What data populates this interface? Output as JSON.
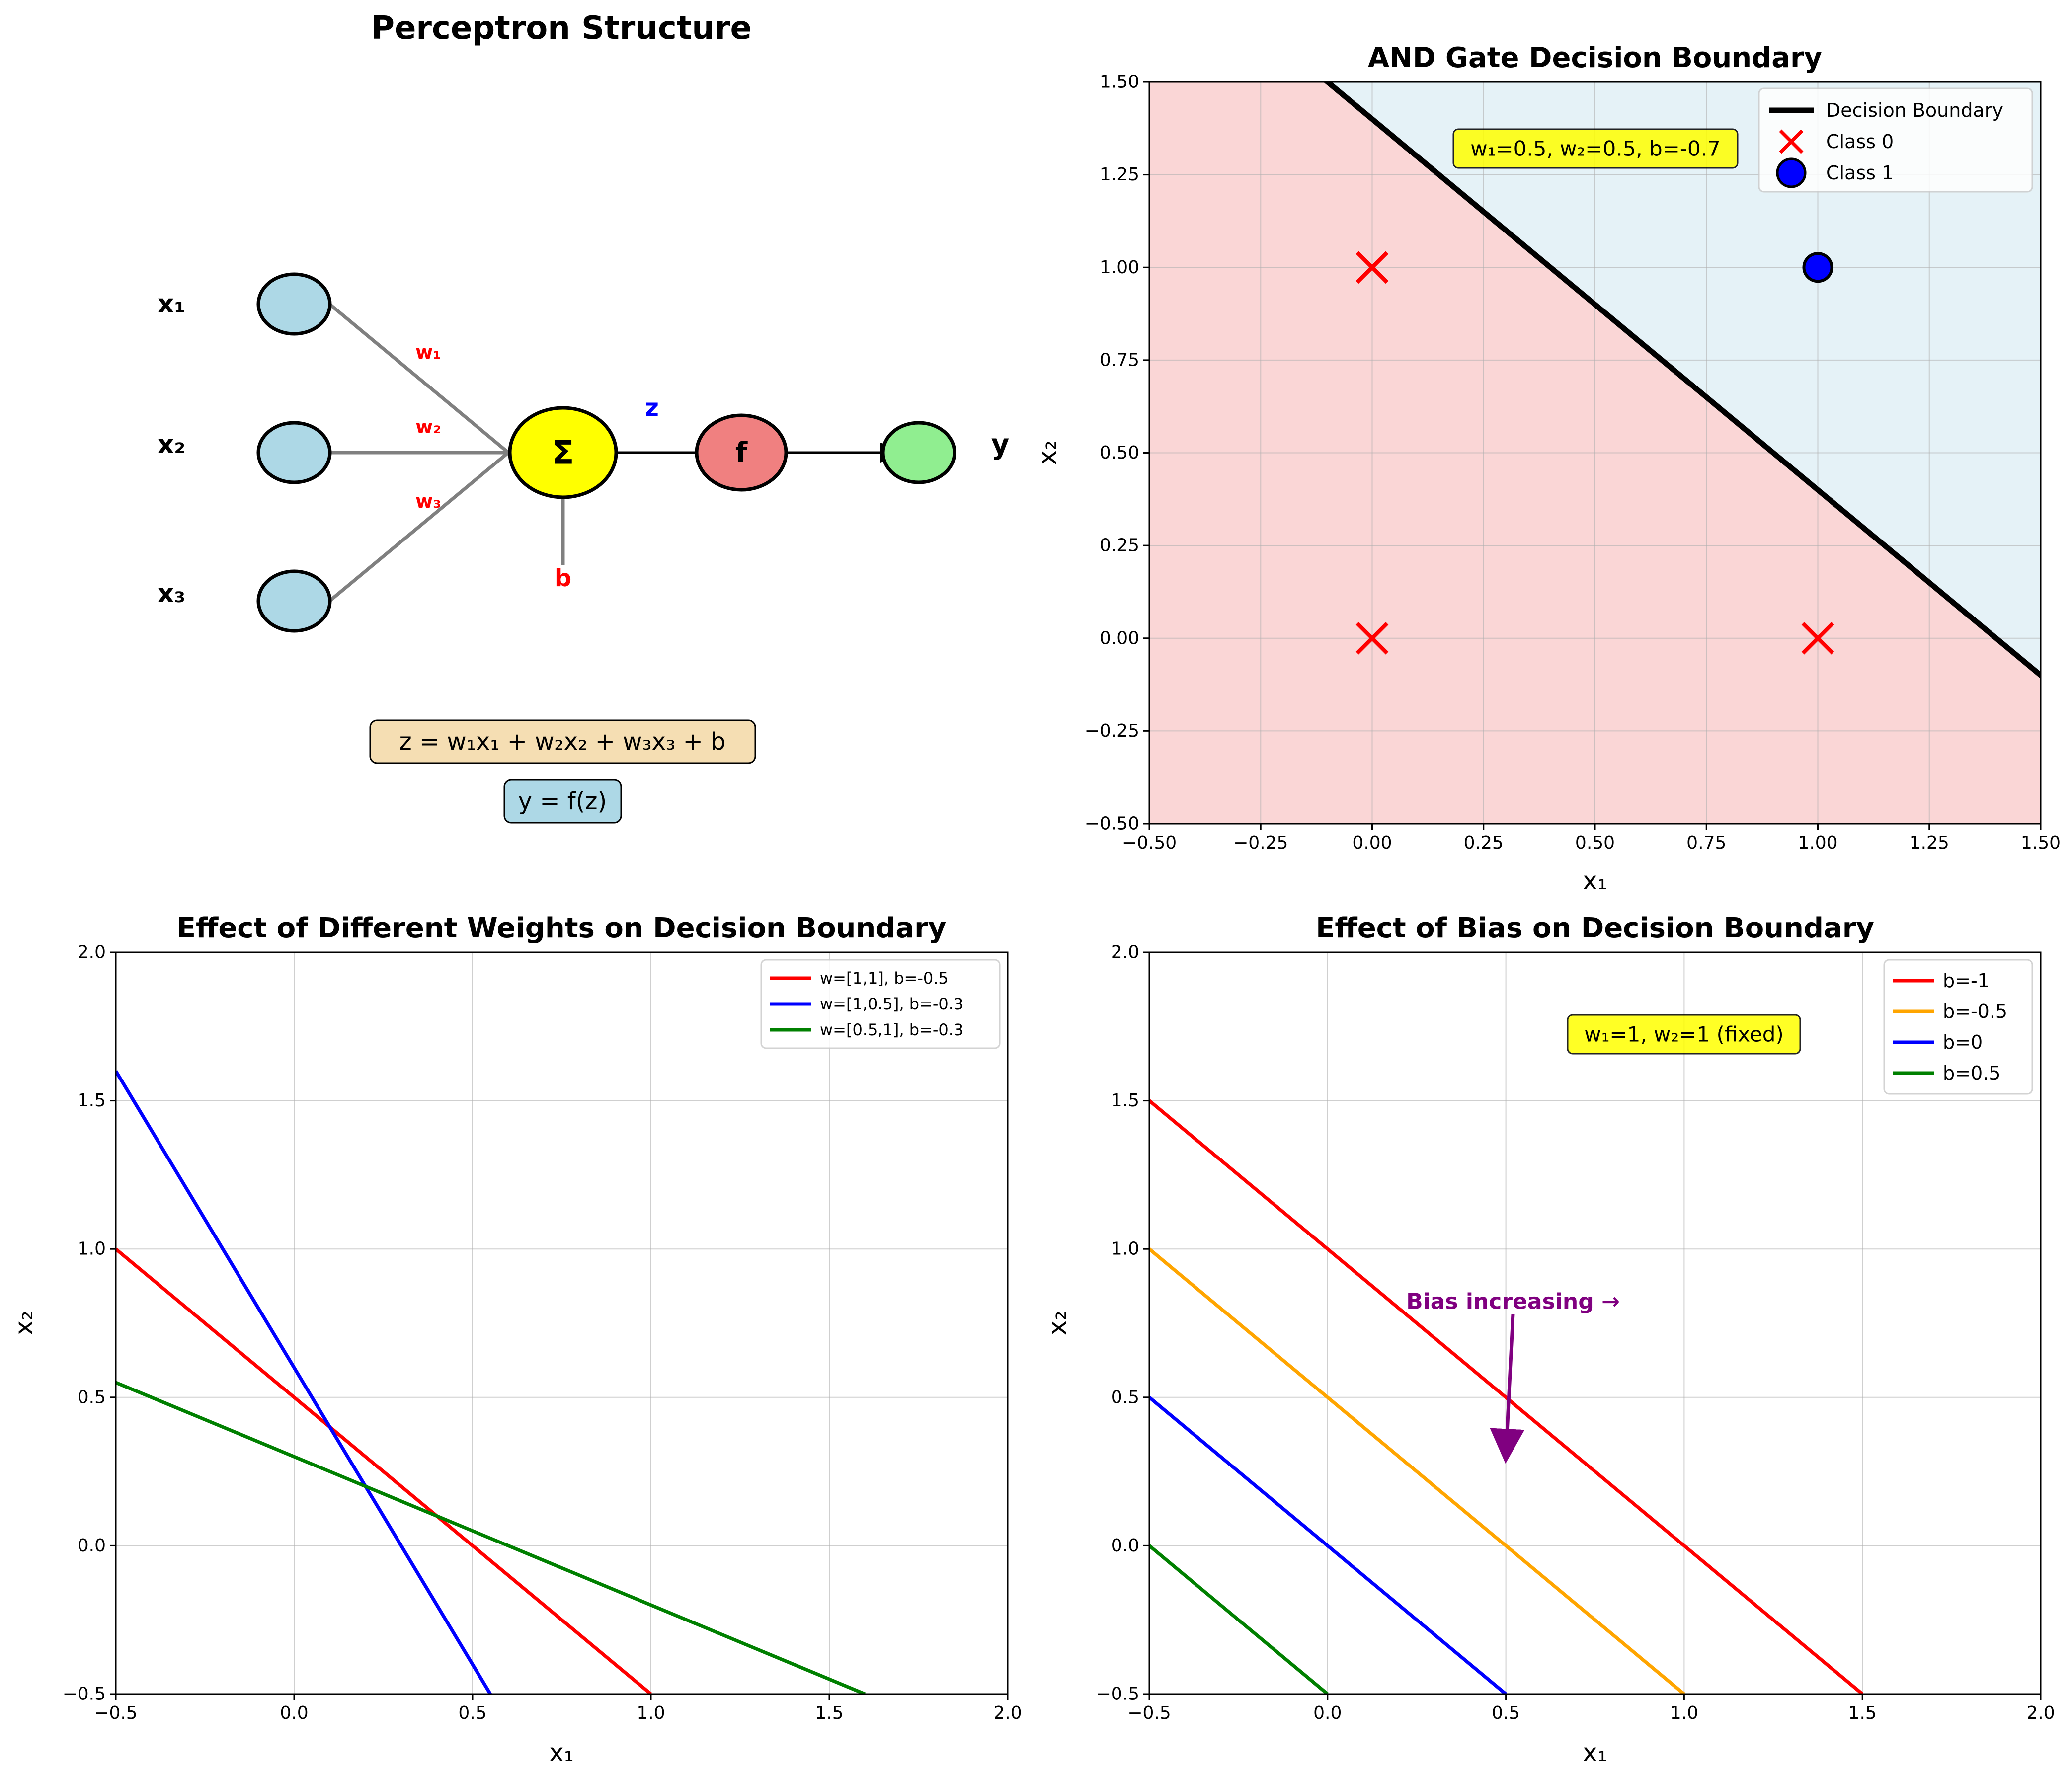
{
  "figure": {
    "background": "#ffffff"
  },
  "chart_data": [
    {
      "type": "diagram",
      "title": "Perceptron Structure",
      "inputs": [
        "x₁",
        "x₂",
        "x₃"
      ],
      "weights": [
        "w₁",
        "w₂",
        "w₃"
      ],
      "sum_symbol": "Σ",
      "activation_symbol": "f",
      "z_label": "z",
      "bias_label": "b",
      "output_label": "y",
      "equation_1": "z = w₁x₁ + w₂x₂ + w₃x₃ + b",
      "equation_2": "y = f(z)",
      "colors": {
        "input_node": "#add8e6",
        "sum_node": "#ffff00",
        "activation_node": "#f08080",
        "output_node": "#90ee90",
        "weight_text": "#ff0000",
        "z_text": "#0000ff",
        "connection": "#808080",
        "equation_1_box": "#f5deb3",
        "equation_2_box": "#add8e6"
      }
    },
    {
      "type": "line",
      "title": "AND Gate Decision Boundary",
      "xlabel": "x₁",
      "ylabel": "x₂",
      "xlim": [
        -0.5,
        1.5
      ],
      "ylim": [
        -0.5,
        1.5
      ],
      "xticks": [
        "−0.50",
        "−0.25",
        "0.00",
        "0.25",
        "0.50",
        "0.75",
        "1.00",
        "1.25",
        "1.50"
      ],
      "yticks": [
        "−0.50",
        "−0.25",
        "0.00",
        "0.25",
        "0.50",
        "0.75",
        "1.00",
        "1.25",
        "1.50"
      ],
      "grid": true,
      "legend_position": "top-right",
      "annotation": "w₁=0.5, w₂=0.5, b=-0.7",
      "boundary": {
        "name": "Decision Boundary",
        "x": [
          -0.5,
          1.5
        ],
        "y": [
          1.9,
          -0.1
        ],
        "color": "#000000"
      },
      "regions": {
        "class0_color": "#f08080",
        "class1_color": "#add8e6"
      },
      "points": [
        {
          "series": "Class 0",
          "x": 0,
          "y": 0
        },
        {
          "series": "Class 0",
          "x": 0,
          "y": 1
        },
        {
          "series": "Class 0",
          "x": 1,
          "y": 0
        },
        {
          "series": "Class 1",
          "x": 1,
          "y": 1
        }
      ],
      "legend": [
        {
          "name": "Decision Boundary",
          "marker": "line",
          "color": "#000000"
        },
        {
          "name": "Class 0",
          "marker": "x",
          "color": "#ff0000"
        },
        {
          "name": "Class 1",
          "marker": "o",
          "color": "#0000ff"
        }
      ]
    },
    {
      "type": "line",
      "title": "Effect of Different Weights on Decision Boundary",
      "xlabel": "x₁",
      "ylabel": "x₂",
      "xlim": [
        -0.5,
        2.0
      ],
      "ylim": [
        -0.5,
        2.0
      ],
      "xticks": [
        "−0.5",
        "0.0",
        "0.5",
        "1.0",
        "1.5",
        "2.0"
      ],
      "yticks": [
        "−0.5",
        "0.0",
        "0.5",
        "1.0",
        "1.5",
        "2.0"
      ],
      "grid": true,
      "legend_position": "top-right",
      "series": [
        {
          "name": "w=[1,1], b=-0.5",
          "color": "#ff0000",
          "x": [
            -0.5,
            1.0
          ],
          "y": [
            1.0,
            -0.5
          ]
        },
        {
          "name": "w=[1,0.5], b=-0.3",
          "color": "#0000ff",
          "x": [
            -0.5,
            0.55
          ],
          "y": [
            1.6,
            -0.5
          ]
        },
        {
          "name": "w=[0.5,1], b=-0.3",
          "color": "#008000",
          "x": [
            -0.5,
            1.6
          ],
          "y": [
            0.55,
            -0.5
          ]
        }
      ]
    },
    {
      "type": "line",
      "title": "Effect of Bias on Decision Boundary",
      "xlabel": "x₁",
      "ylabel": "x₂",
      "xlim": [
        -0.5,
        2.0
      ],
      "ylim": [
        -0.5,
        2.0
      ],
      "xticks": [
        "−0.5",
        "0.0",
        "0.5",
        "1.0",
        "1.5",
        "2.0"
      ],
      "yticks": [
        "−0.5",
        "0.0",
        "0.5",
        "1.0",
        "1.5",
        "2.0"
      ],
      "grid": true,
      "legend_position": "top-right",
      "annotation": "w₁=1, w₂=1 (fixed)",
      "arrow_text": "Bias increasing →",
      "arrow": {
        "from": [
          0.52,
          0.78
        ],
        "to": [
          0.5,
          0.3
        ],
        "color": "#800080"
      },
      "series": [
        {
          "name": "b=-1",
          "color": "#ff0000",
          "x": [
            -0.5,
            1.5
          ],
          "y": [
            1.5,
            -0.5
          ]
        },
        {
          "name": "b=-0.5",
          "color": "#ffa500",
          "x": [
            -0.5,
            1.0
          ],
          "y": [
            1.0,
            -0.5
          ]
        },
        {
          "name": "b=0",
          "color": "#0000ff",
          "x": [
            -0.5,
            0.5
          ],
          "y": [
            0.5,
            -0.5
          ]
        },
        {
          "name": "b=0.5",
          "color": "#008000",
          "x": [
            -0.5,
            0.0
          ],
          "y": [
            0.0,
            -0.5
          ]
        }
      ]
    }
  ]
}
